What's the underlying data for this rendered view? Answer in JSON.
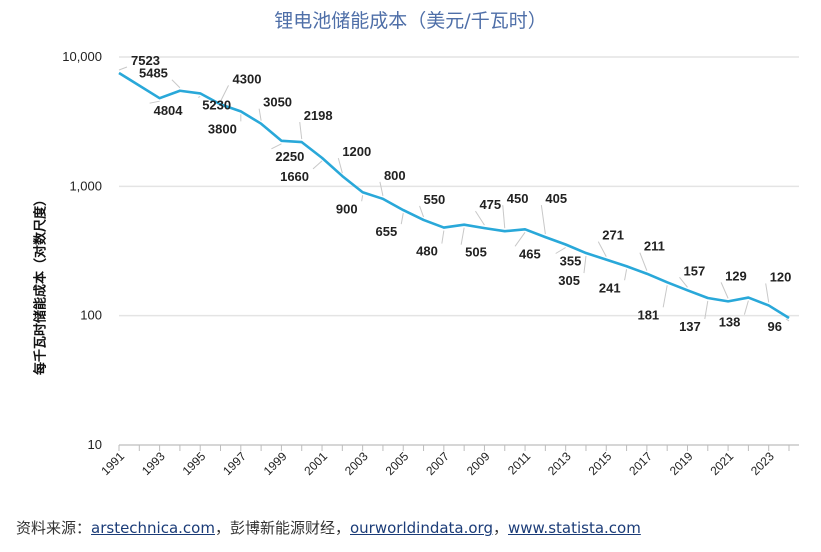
{
  "chart_data": {
    "type": "line",
    "title": "锂电池储能成本（美元/千瓦时）",
    "ylabel": "每千瓦时储能成本（对数尺度）",
    "xlabel": "",
    "yscale": "log",
    "ylim": [
      10,
      10000
    ],
    "y_ticks": [
      "10,000",
      "1,000",
      "100",
      "10"
    ],
    "y_tick_values": [
      10000,
      1000,
      100,
      10
    ],
    "x_ticks": [
      "1991",
      "1993",
      "1995",
      "1997",
      "1999",
      "2001",
      "2003",
      "2005",
      "2007",
      "2009",
      "2011",
      "2013",
      "2015",
      "2017",
      "2019",
      "2021",
      "2023"
    ],
    "grid": true,
    "legend": "none",
    "line_color": "#29a8d9",
    "series": [
      {
        "x": [
          1991,
          1993,
          1994,
          1995,
          1996,
          1997,
          1998,
          1999,
          2000,
          2001,
          2002,
          2003,
          2004,
          2005,
          2006,
          2007,
          2008,
          2009,
          2010,
          2011,
          2012,
          2013,
          2014,
          2015,
          2016,
          2017,
          2018,
          2019,
          2020,
          2021,
          2022,
          2023,
          2024
        ],
        "values": [
          7523,
          4804,
          5485,
          5230,
          4300,
          3800,
          3050,
          2250,
          2198,
          1660,
          1200,
          900,
          800,
          655,
          550,
          480,
          505,
          475,
          450,
          465,
          405,
          355,
          305,
          271,
          241,
          211,
          181,
          157,
          137,
          129,
          138,
          120,
          96
        ],
        "labels": [
          "7523",
          "4804",
          "5485",
          "5230",
          "4300",
          "3800",
          "3050",
          "2250",
          "2198",
          "1660",
          "1200",
          "900",
          "800",
          "655",
          "550",
          "480",
          "505",
          "475",
          "450",
          "465",
          "405",
          "355",
          "305",
          "271",
          "241",
          "211",
          "181",
          "157",
          "137",
          "129",
          "138",
          "120",
          "96"
        ]
      }
    ]
  },
  "footer": {
    "prefix": "资料来源：",
    "link1": "arstechnica.com",
    "sep1": "，彭博新能源财经，",
    "link2": "ourworldindata.org",
    "sep2": "，",
    "link3": "www.statista.com"
  },
  "colors": {
    "title": "#4f6fa8",
    "line": "#29a8d9",
    "grid": "#e4e4e4",
    "leader": "#c8c8c8",
    "link": "#1b3c78"
  }
}
